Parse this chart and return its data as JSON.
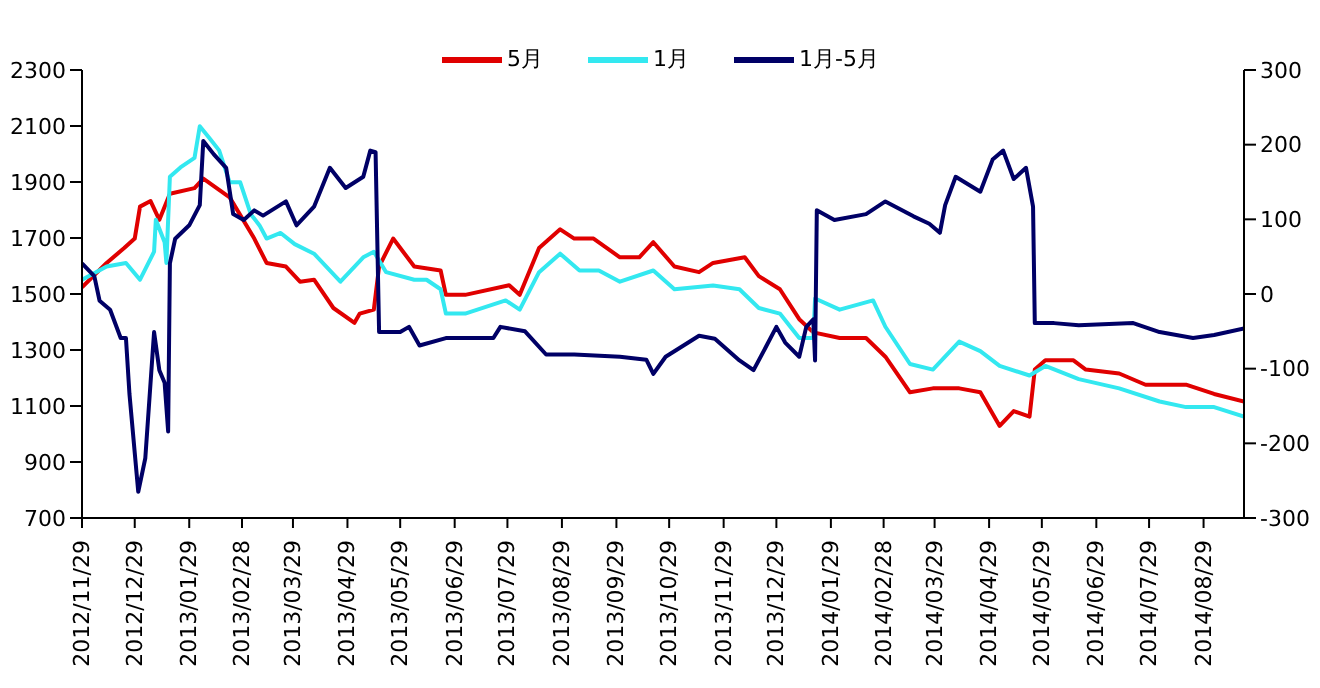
{
  "chart_data": {
    "type": "line",
    "xlim": [
      "2012-11-29",
      "2014-09-21"
    ],
    "xticks": [
      {
        "value": "2012-11-29",
        "label": "2012/11/29"
      },
      {
        "value": "2012-12-29",
        "label": "2012/12/29"
      },
      {
        "value": "2013-01-29",
        "label": "2013/01/29"
      },
      {
        "value": "2013-02-28",
        "label": "2013/02/28"
      },
      {
        "value": "2013-03-29",
        "label": "2013/03/29"
      },
      {
        "value": "2013-04-29",
        "label": "2013/04/29"
      },
      {
        "value": "2013-05-29",
        "label": "2013/05/29"
      },
      {
        "value": "2013-06-29",
        "label": "2013/06/29"
      },
      {
        "value": "2013-07-29",
        "label": "2013/07/29"
      },
      {
        "value": "2013-08-29",
        "label": "2013/08/29"
      },
      {
        "value": "2013-09-29",
        "label": "2013/09/29"
      },
      {
        "value": "2013-10-29",
        "label": "2013/10/29"
      },
      {
        "value": "2013-11-29",
        "label": "2013/11/29"
      },
      {
        "value": "2013-12-29",
        "label": "2013/12/29"
      },
      {
        "value": "2014-01-29",
        "label": "2014/01/29"
      },
      {
        "value": "2014-02-28",
        "label": "2014/02/28"
      },
      {
        "value": "2014-03-29",
        "label": "2014/03/29"
      },
      {
        "value": "2014-04-29",
        "label": "2014/04/29"
      },
      {
        "value": "2014-05-29",
        "label": "2014/05/29"
      },
      {
        "value": "2014-06-29",
        "label": "2014/06/29"
      },
      {
        "value": "2014-07-29",
        "label": "2014/07/29"
      },
      {
        "value": "2014-08-29",
        "label": "2014/08/29"
      }
    ],
    "ylim": [
      700,
      2300
    ],
    "yticks": [
      700,
      900,
      1100,
      1300,
      1500,
      1700,
      1900,
      2100,
      2300
    ],
    "y2lim": [
      -300,
      300
    ],
    "y2ticks": [
      -300,
      -200,
      -100,
      0,
      100,
      200,
      300
    ],
    "grid": false,
    "legend": "top",
    "marker": "none",
    "line_style": "solid",
    "series": [
      {
        "name": "5月",
        "color": "#e00000",
        "x": [
          "2012-11-29",
          "2012-12-13",
          "2012-12-23",
          "2012-12-29",
          "2013-01-01",
          "2013-01-07",
          "2013-01-12",
          "2013-01-18",
          "2013-02-01",
          "2013-02-06",
          "2013-02-21",
          "2013-03-07",
          "2013-03-14",
          "2013-03-25",
          "2013-04-02",
          "2013-04-10",
          "2013-04-21",
          "2013-05-03",
          "2013-05-06",
          "2013-05-14",
          "2013-05-17",
          "2013-05-25",
          "2013-06-06",
          "2013-06-21",
          "2013-06-24",
          "2013-07-05",
          "2013-07-30",
          "2013-08-05",
          "2013-08-16",
          "2013-08-28",
          "2013-09-05",
          "2013-09-16",
          "2013-10-01",
          "2013-10-12",
          "2013-10-20",
          "2013-11-01",
          "2013-11-15",
          "2013-11-23",
          "2013-12-11",
          "2013-12-19",
          "2013-12-31",
          "2014-01-11",
          "2014-01-19",
          "2014-02-03",
          "2014-02-18",
          "2014-03-01",
          "2014-03-15",
          "2014-03-28",
          "2014-04-12",
          "2014-04-24",
          "2014-05-05",
          "2014-05-13",
          "2014-05-22",
          "2014-05-25",
          "2014-05-31",
          "2014-06-16",
          "2014-06-23",
          "2014-07-12",
          "2014-07-27",
          "2014-08-19",
          "2014-09-04",
          "2014-09-21"
        ],
        "values": [
          1524,
          1611,
          1664,
          1698,
          1812,
          1832,
          1765,
          1858,
          1878,
          1912,
          1845,
          1698,
          1611,
          1598,
          1544,
          1551,
          1450,
          1397,
          1430,
          1444,
          1598,
          1698,
          1598,
          1584,
          1497,
          1497,
          1531,
          1497,
          1664,
          1731,
          1698,
          1698,
          1631,
          1631,
          1685,
          1598,
          1578,
          1611,
          1631,
          1564,
          1517,
          1410,
          1363,
          1343,
          1343,
          1276,
          1149,
          1163,
          1163,
          1149,
          1029,
          1082,
          1062,
          1230,
          1263,
          1263,
          1230,
          1216,
          1176,
          1176,
          1143,
          1116
        ]
      },
      {
        "name": "1月",
        "color": "#33e8f0",
        "x": [
          "2012-11-29",
          "2012-12-13",
          "2012-12-24",
          "2013-01-01",
          "2013-01-09",
          "2013-01-10",
          "2013-01-15",
          "2013-01-16",
          "2013-01-18",
          "2013-01-24",
          "2013-02-01",
          "2013-02-04",
          "2013-02-10",
          "2013-02-15",
          "2013-02-21",
          "2013-02-27",
          "2013-03-05",
          "2013-03-10",
          "2013-03-14",
          "2013-03-22",
          "2013-03-30",
          "2013-04-10",
          "2013-04-25",
          "2013-05-08",
          "2013-05-14",
          "2013-05-21",
          "2013-06-06",
          "2013-06-13",
          "2013-06-21",
          "2013-06-24",
          "2013-07-05",
          "2013-07-28",
          "2013-08-05",
          "2013-08-16",
          "2013-08-28",
          "2013-09-08",
          "2013-09-19",
          "2013-10-01",
          "2013-10-20",
          "2013-11-01",
          "2013-11-23",
          "2013-12-08",
          "2013-12-19",
          "2013-12-31",
          "2014-01-11",
          "2014-01-19",
          "2014-01-20",
          "2014-02-03",
          "2014-02-22",
          "2014-03-01",
          "2014-03-15",
          "2014-03-28",
          "2014-04-12",
          "2014-04-24",
          "2014-05-05",
          "2014-05-22",
          "2014-05-31",
          "2014-06-19",
          "2014-07-12",
          "2014-08-04",
          "2014-08-19",
          "2014-09-04",
          "2014-09-21"
        ],
        "values": [
          1551,
          1598,
          1611,
          1551,
          1651,
          1765,
          1685,
          1611,
          1919,
          1952,
          1986,
          2099,
          2053,
          2013,
          1899,
          1899,
          1785,
          1745,
          1698,
          1718,
          1678,
          1644,
          1544,
          1631,
          1651,
          1578,
          1551,
          1551,
          1517,
          1430,
          1430,
          1477,
          1444,
          1578,
          1644,
          1584,
          1584,
          1544,
          1584,
          1517,
          1530,
          1517,
          1450,
          1430,
          1343,
          1343,
          1484,
          1444,
          1477,
          1383,
          1250,
          1230,
          1330,
          1296,
          1243,
          1209,
          1243,
          1196,
          1163,
          1116,
          1096,
          1096,
          1062
        ]
      },
      {
        "name": "1月-5月",
        "color": "#000066",
        "axis": "y2",
        "x": [
          "2012-11-29",
          "2012-12-06",
          "2012-12-09",
          "2012-12-15",
          "2012-12-21",
          "2012-12-24",
          "2012-12-26",
          "2012-12-31",
          "2013-01-04",
          "2013-01-09",
          "2013-01-12",
          "2013-01-15",
          "2013-01-17",
          "2013-01-18",
          "2013-01-21",
          "2013-01-29",
          "2013-02-04",
          "2013-02-06",
          "2013-02-12",
          "2013-02-19",
          "2013-02-23",
          "2013-03-01",
          "2013-03-07",
          "2013-03-12",
          "2013-03-25",
          "2013-03-31",
          "2013-04-10",
          "2013-04-19",
          "2013-04-28",
          "2013-05-08",
          "2013-05-12",
          "2013-05-15",
          "2013-05-17",
          "2013-05-29",
          "2013-06-03",
          "2013-06-09",
          "2013-06-24",
          "2013-07-21",
          "2013-07-25",
          "2013-08-08",
          "2013-08-20",
          "2013-09-05",
          "2013-10-01",
          "2013-10-16",
          "2013-10-20",
          "2013-10-27",
          "2013-11-15",
          "2013-11-24",
          "2013-12-08",
          "2013-12-16",
          "2013-12-23",
          "2013-12-29",
          "2014-01-03",
          "2014-01-11",
          "2014-01-15",
          "2014-01-19",
          "2014-01-20",
          "2014-01-21",
          "2014-01-31",
          "2014-02-18",
          "2014-03-01",
          "2014-03-17",
          "2014-03-26",
          "2014-04-01",
          "2014-04-04",
          "2014-04-10",
          "2014-04-24",
          "2014-05-01",
          "2014-05-07",
          "2014-05-13",
          "2014-05-20",
          "2014-05-24",
          "2014-05-25",
          "2014-06-05",
          "2014-06-19",
          "2014-07-20",
          "2014-08-04",
          "2014-08-23",
          "2014-09-04",
          "2014-09-21"
        ],
        "values": [
          41,
          24,
          -9,
          -21,
          -59,
          -59,
          -134,
          -265,
          -220,
          -51,
          -102,
          -119,
          -184,
          41,
          74,
          92,
          119,
          205,
          187,
          169,
          107,
          99,
          112,
          105,
          124,
          92,
          117,
          169,
          142,
          157,
          192,
          190,
          -51,
          -51,
          -44,
          -69,
          -59,
          -59,
          -44,
          -50,
          -81,
          -81,
          -84,
          -88,
          -107,
          -84,
          -56,
          -60,
          -89,
          -102,
          -71,
          -44,
          -65,
          -84,
          -44,
          -34,
          -89,
          112,
          99,
          107,
          124,
          104,
          94,
          82,
          119,
          157,
          137,
          180,
          192,
          154,
          169,
          117,
          -39,
          -39,
          -42,
          -39,
          -51,
          -59,
          -55,
          -46
        ]
      }
    ]
  }
}
